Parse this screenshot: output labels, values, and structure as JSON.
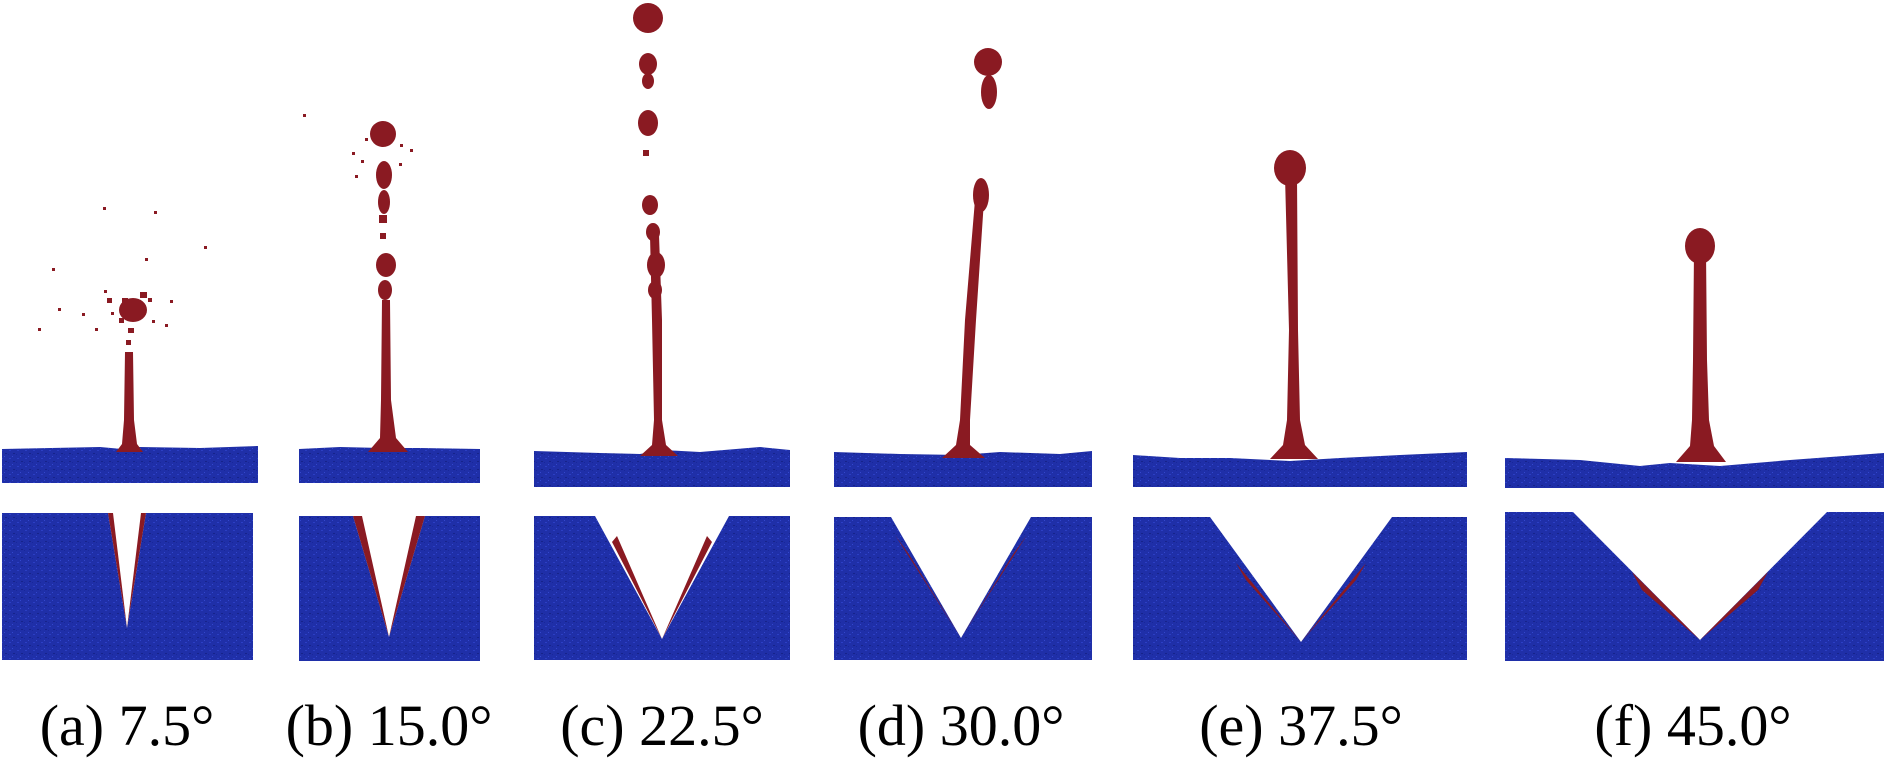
{
  "figure": {
    "panels": [
      {
        "label": "(a) 7.5°",
        "angle_deg": 7.5
      },
      {
        "label": "(b) 15.0°",
        "angle_deg": 15.0
      },
      {
        "label": "(c) 22.5°",
        "angle_deg": 22.5
      },
      {
        "label": "(d) 30.0°",
        "angle_deg": 30.0
      },
      {
        "label": "(e) 37.5°",
        "angle_deg": 37.5
      },
      {
        "label": "(f) 45.0°",
        "angle_deg": 45.0
      }
    ],
    "colors": {
      "substrate": "#1f2fa8",
      "jet_metal": "#8a1a22",
      "background": "#ffffff"
    }
  }
}
